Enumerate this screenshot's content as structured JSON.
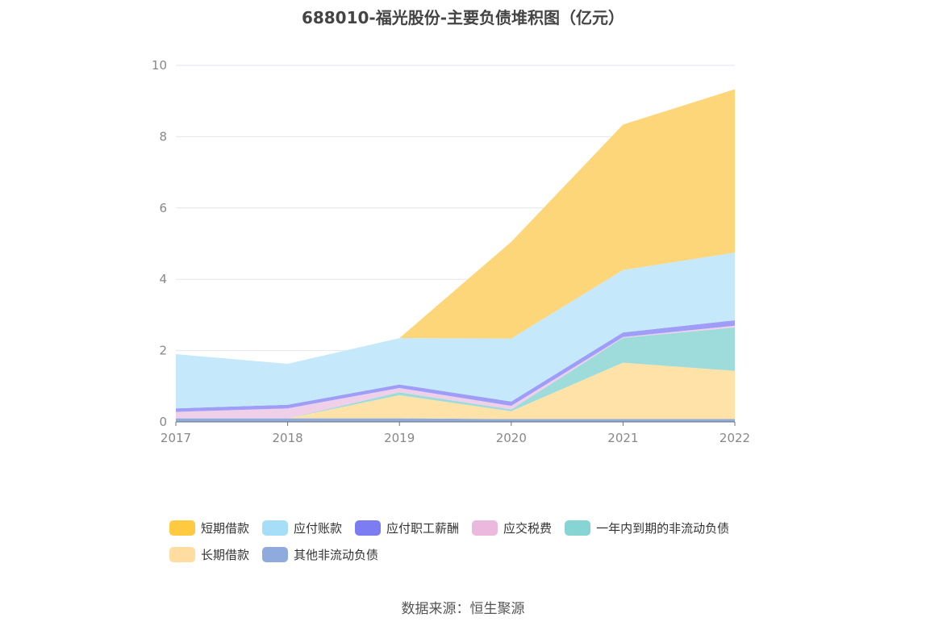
{
  "title": "688010-福光股份-主要负债堆积图（亿元）",
  "source": "数据来源：恒生聚源",
  "chart_data": {
    "type": "area",
    "stacked": true,
    "categories": [
      "2017",
      "2018",
      "2019",
      "2020",
      "2021",
      "2022"
    ],
    "ylim": [
      0,
      10
    ],
    "yticks": [
      "0",
      "2",
      "4",
      "6",
      "8",
      "10"
    ],
    "grid": true,
    "legend_position": "bottom",
    "series": [
      {
        "name": "其他非流动负债",
        "color": "#8FAADC",
        "values": [
          0.1,
          0.1,
          0.1,
          0.08,
          0.08,
          0.08
        ]
      },
      {
        "name": "长期借款",
        "color": "#FFE2A8",
        "values": [
          0.0,
          0.0,
          0.65,
          0.22,
          1.58,
          1.35
        ]
      },
      {
        "name": "一年内到期的非流动负债",
        "color": "#9EDCDC",
        "values": [
          0.0,
          0.0,
          0.08,
          0.05,
          0.7,
          1.22
        ]
      },
      {
        "name": "应交税费",
        "color": "#EFD0E8",
        "values": [
          0.18,
          0.28,
          0.12,
          0.1,
          0.02,
          0.05
        ]
      },
      {
        "name": "应付职工薪酬",
        "color": "#9E9EF8",
        "values": [
          0.1,
          0.1,
          0.1,
          0.12,
          0.13,
          0.15
        ]
      },
      {
        "name": "应付账款",
        "color": "#C5E9FA",
        "values": [
          1.52,
          1.15,
          1.3,
          1.77,
          1.75,
          1.9
        ]
      },
      {
        "name": "短期借款",
        "color": "#FDD67A",
        "values": [
          0.0,
          0.0,
          0.0,
          2.71,
          4.08,
          4.58
        ]
      }
    ]
  },
  "legend": [
    [
      {
        "name": "短期借款",
        "color": "#FFCA40"
      },
      {
        "name": "应付账款",
        "color": "#A7DEF7"
      },
      {
        "name": "应付职工薪酬",
        "color": "#7C7CF3"
      },
      {
        "name": "应交税费",
        "color": "#EBB8DE"
      },
      {
        "name": "一年内到期的非流动负债",
        "color": "#86D4D4"
      }
    ],
    [
      {
        "name": "长期借款",
        "color": "#FFDDA0"
      },
      {
        "name": "其他非流动负债",
        "color": "#8FAADC"
      }
    ]
  ]
}
